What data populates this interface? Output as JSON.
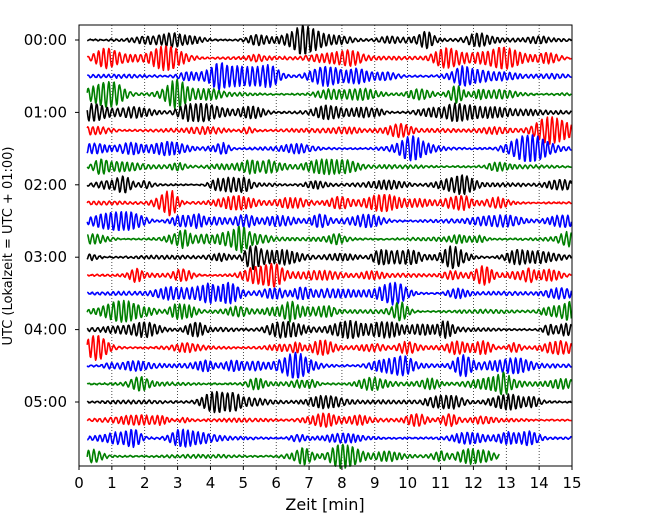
{
  "chart_data": {
    "type": "line",
    "title": "",
    "xlabel": "Zeit  [min]",
    "ylabel": "UTC (Lokalzeit = UTC + 01:00)",
    "xlim": [
      0,
      15
    ],
    "x_ticks": [
      "0",
      "1",
      "2",
      "3",
      "4",
      "5",
      "6",
      "7",
      "8",
      "9",
      "10",
      "11",
      "12",
      "13",
      "14",
      "15"
    ],
    "y_ticks": [
      "00:00",
      "01:00",
      "02:00",
      "03:00",
      "04:00",
      "05:00"
    ],
    "row_interval_minutes": 15,
    "rows_per_hour": 4,
    "grid": "vertical dotted",
    "colors": [
      "#000000",
      "#ff0000",
      "#0000ff",
      "#008000"
    ],
    "series": [
      {
        "start": "00:00",
        "color": "#000000",
        "end_min": 15
      },
      {
        "start": "00:15",
        "color": "#ff0000",
        "end_min": 15
      },
      {
        "start": "00:30",
        "color": "#0000ff",
        "end_min": 15
      },
      {
        "start": "00:45",
        "color": "#008000",
        "end_min": 15
      },
      {
        "start": "01:00",
        "color": "#000000",
        "end_min": 15
      },
      {
        "start": "01:15",
        "color": "#ff0000",
        "end_min": 15
      },
      {
        "start": "01:30",
        "color": "#0000ff",
        "end_min": 15
      },
      {
        "start": "01:45",
        "color": "#008000",
        "end_min": 15
      },
      {
        "start": "02:00",
        "color": "#000000",
        "end_min": 15
      },
      {
        "start": "02:15",
        "color": "#ff0000",
        "end_min": 15
      },
      {
        "start": "02:30",
        "color": "#0000ff",
        "end_min": 15
      },
      {
        "start": "02:45",
        "color": "#008000",
        "end_min": 15
      },
      {
        "start": "03:00",
        "color": "#000000",
        "end_min": 15
      },
      {
        "start": "03:15",
        "color": "#ff0000",
        "end_min": 15
      },
      {
        "start": "03:30",
        "color": "#0000ff",
        "end_min": 15
      },
      {
        "start": "03:45",
        "color": "#008000",
        "end_min": 15
      },
      {
        "start": "04:00",
        "color": "#000000",
        "end_min": 15
      },
      {
        "start": "04:15",
        "color": "#ff0000",
        "end_min": 15
      },
      {
        "start": "04:30",
        "color": "#0000ff",
        "end_min": 15
      },
      {
        "start": "04:45",
        "color": "#008000",
        "end_min": 15
      },
      {
        "start": "05:00",
        "color": "#000000",
        "end_min": 15
      },
      {
        "start": "05:15",
        "color": "#ff0000",
        "end_min": 15
      },
      {
        "start": "05:30",
        "color": "#0000ff",
        "end_min": 15
      },
      {
        "start": "05:45",
        "color": "#008000",
        "end_min": 12.8
      }
    ]
  }
}
